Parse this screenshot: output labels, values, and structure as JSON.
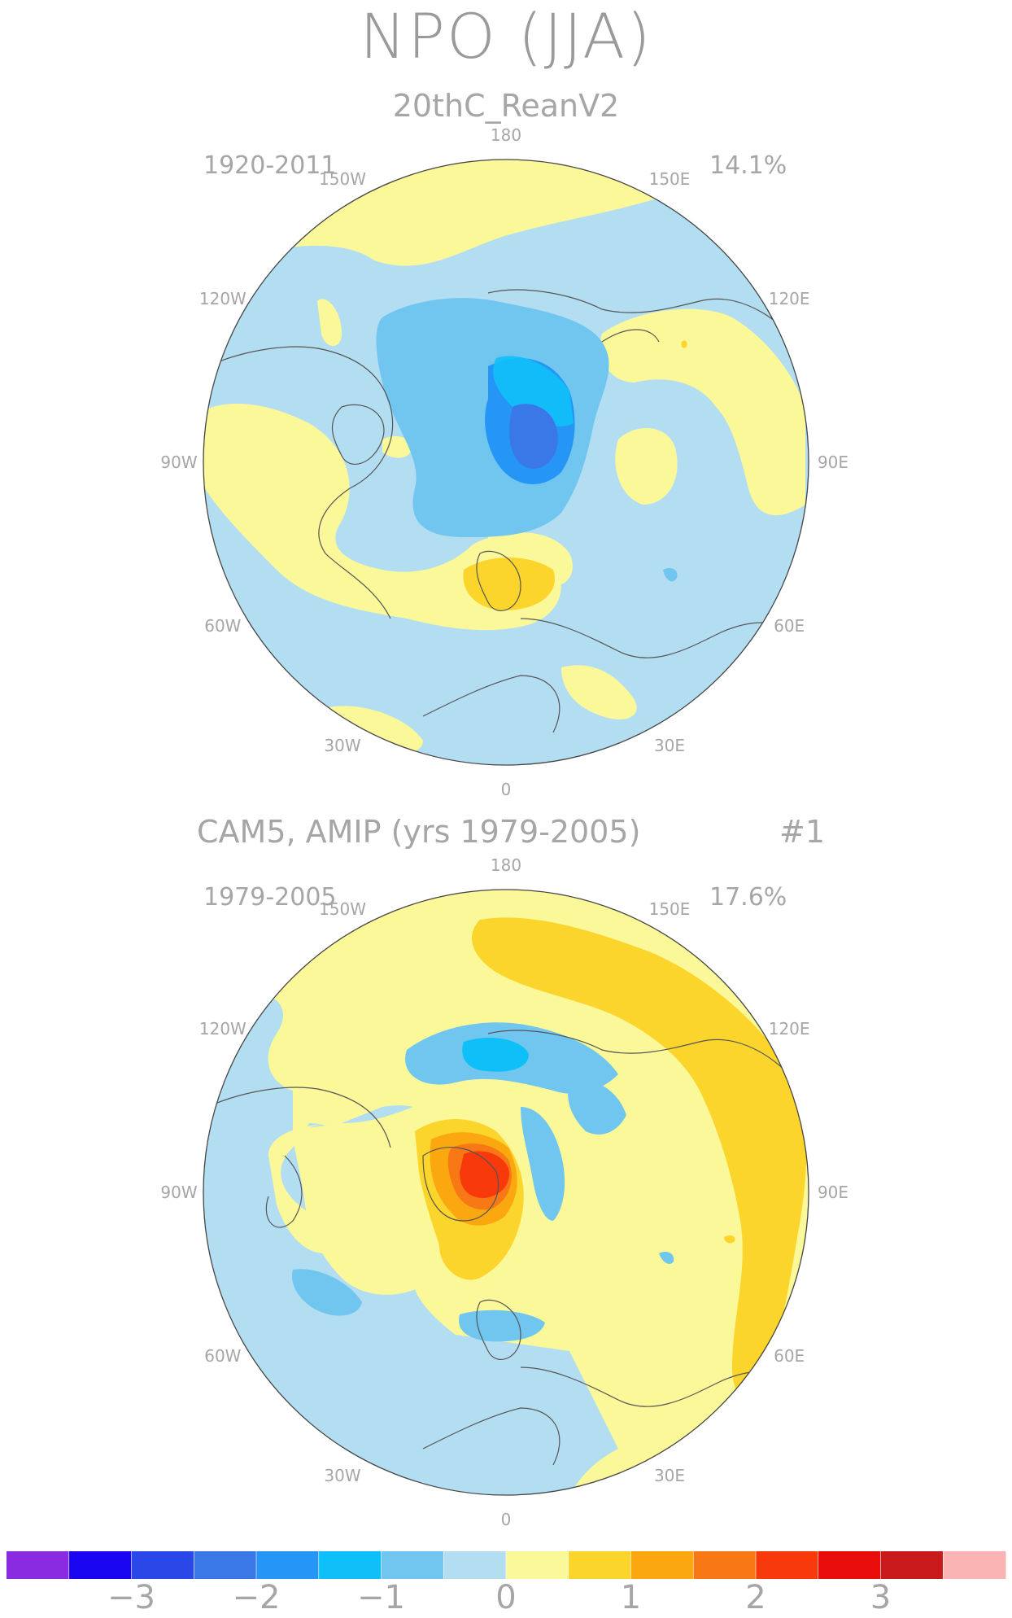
{
  "title": "NPO (JJA)",
  "panels": [
    {
      "name": "top",
      "subtitle": "20thC_ReanV2",
      "years": "1920-2011",
      "variance": "14.1%",
      "tag": ""
    },
    {
      "name": "bottom",
      "subtitle": "CAM5, AMIP (yrs 1979-2005)",
      "years": "1979-2005",
      "variance": "17.6%",
      "tag": "#1"
    }
  ],
  "longitudes": [
    "180",
    "150E",
    "120E",
    "90E",
    "60E",
    "30E",
    "0",
    "30W",
    "60W",
    "90W",
    "120W",
    "150W"
  ],
  "colorbar": {
    "colors": [
      "#8a2be2",
      "#1a06f0",
      "#2a48e8",
      "#3a78e8",
      "#2596f5",
      "#0fc0f8",
      "#71c6f0",
      "#b3def2",
      "#fbf89a",
      "#fbd52b",
      "#fba70f",
      "#f87816",
      "#f8390b",
      "#e80d0b",
      "#c81a1a",
      "#fbb4b4"
    ],
    "labels": [
      "-3",
      "-2",
      "-1",
      "0",
      "1",
      "2",
      "3"
    ]
  },
  "fill_colors": {
    "land_outline": "#555555",
    "neutral_neg": "#b3def2",
    "neutral_pos": "#fbf89a"
  }
}
